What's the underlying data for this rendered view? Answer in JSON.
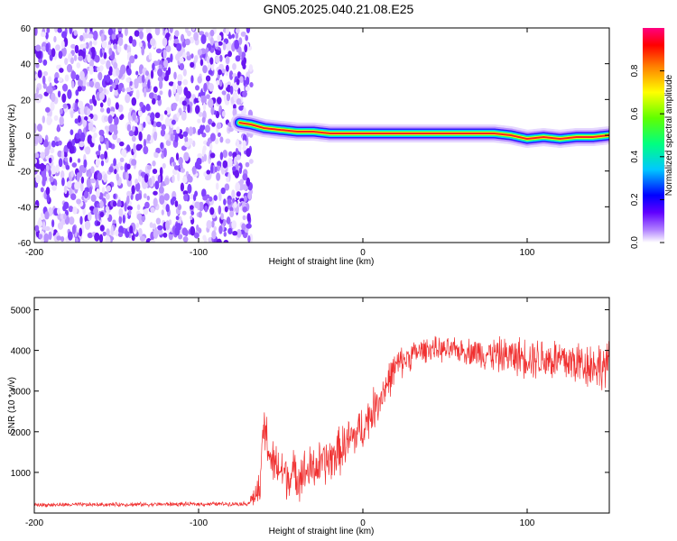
{
  "title": "GN05.2025.040.21.08.E25",
  "chart_data": [
    {
      "type": "heatmap",
      "xlabel": "Height of straight line (km)",
      "ylabel": "Frequency (Hz)",
      "xlim": [
        -200,
        150
      ],
      "ylim": [
        -60,
        60
      ],
      "xticks": [
        "-200",
        "-100",
        "0",
        "100"
      ],
      "xtick_values": [
        -200,
        -100,
        0,
        100
      ],
      "yticks": [
        "60",
        "40",
        "20",
        "0",
        "-20",
        "-40",
        "-60"
      ],
      "ytick_values": [
        60,
        40,
        20,
        0,
        -20,
        -40,
        -60
      ],
      "noise_region_x": [
        -200,
        -70
      ],
      "ridge_x": [
        -75,
        -68,
        -60,
        -50,
        -40,
        -30,
        -20,
        -10,
        0,
        10,
        20,
        30,
        40,
        50,
        60,
        70,
        80,
        90,
        100,
        110,
        120,
        130,
        140,
        150
      ],
      "ridge_y": [
        7,
        6,
        4,
        3,
        2,
        2,
        1,
        1,
        1,
        1,
        1,
        1,
        1,
        1,
        1,
        1,
        1,
        0,
        -2,
        -1,
        -2,
        -1,
        -1,
        0
      ],
      "colorbar": {
        "label": "Normalized spectral amplitude",
        "range": [
          0,
          1
        ],
        "ticks": [
          "0.0",
          "0.2",
          "0.4",
          "0.6",
          "0.8"
        ],
        "tick_values": [
          0,
          0.2,
          0.4,
          0.6,
          0.8
        ],
        "colors": [
          "#ffffff",
          "#b080ff",
          "#6000ff",
          "#0000ff",
          "#00c8ff",
          "#00ff80",
          "#60ff00",
          "#ffff00",
          "#ff8000",
          "#ff0000",
          "#ff0080"
        ]
      }
    },
    {
      "type": "line",
      "xlabel": "Height of straight line (km)",
      "ylabel": "SNR (10 * v/v)",
      "xlim": [
        -200,
        150
      ],
      "ylim": [
        0,
        5300
      ],
      "xticks": [
        "-200",
        "-100",
        "0",
        "100"
      ],
      "xtick_values": [
        -200,
        -100,
        0,
        100
      ],
      "yticks": [
        "5000",
        "4000",
        "3000",
        "2000",
        "1000"
      ],
      "ytick_values": [
        5000,
        4000,
        3000,
        2000,
        1000
      ],
      "color": "#f03030",
      "x": [
        -200,
        -150,
        -100,
        -70,
        -62,
        -61,
        -55,
        -45,
        -35,
        -20,
        -10,
        0,
        10,
        20,
        30,
        40,
        50,
        60,
        70,
        80,
        90,
        100,
        110,
        120,
        130,
        140,
        150
      ],
      "y": [
        200,
        210,
        220,
        230,
        600,
        2200,
        1200,
        900,
        1000,
        1300,
        1700,
        2100,
        2800,
        3600,
        3900,
        4050,
        4000,
        4000,
        3950,
        3900,
        3850,
        3850,
        3800,
        3750,
        3700,
        3650,
        3600
      ],
      "spread": [
        60,
        60,
        60,
        60,
        600,
        900,
        700,
        700,
        700,
        700,
        700,
        650,
        600,
        500,
        400,
        350,
        350,
        350,
        450,
        500,
        550,
        600,
        650,
        700,
        700,
        700,
        700
      ]
    }
  ]
}
